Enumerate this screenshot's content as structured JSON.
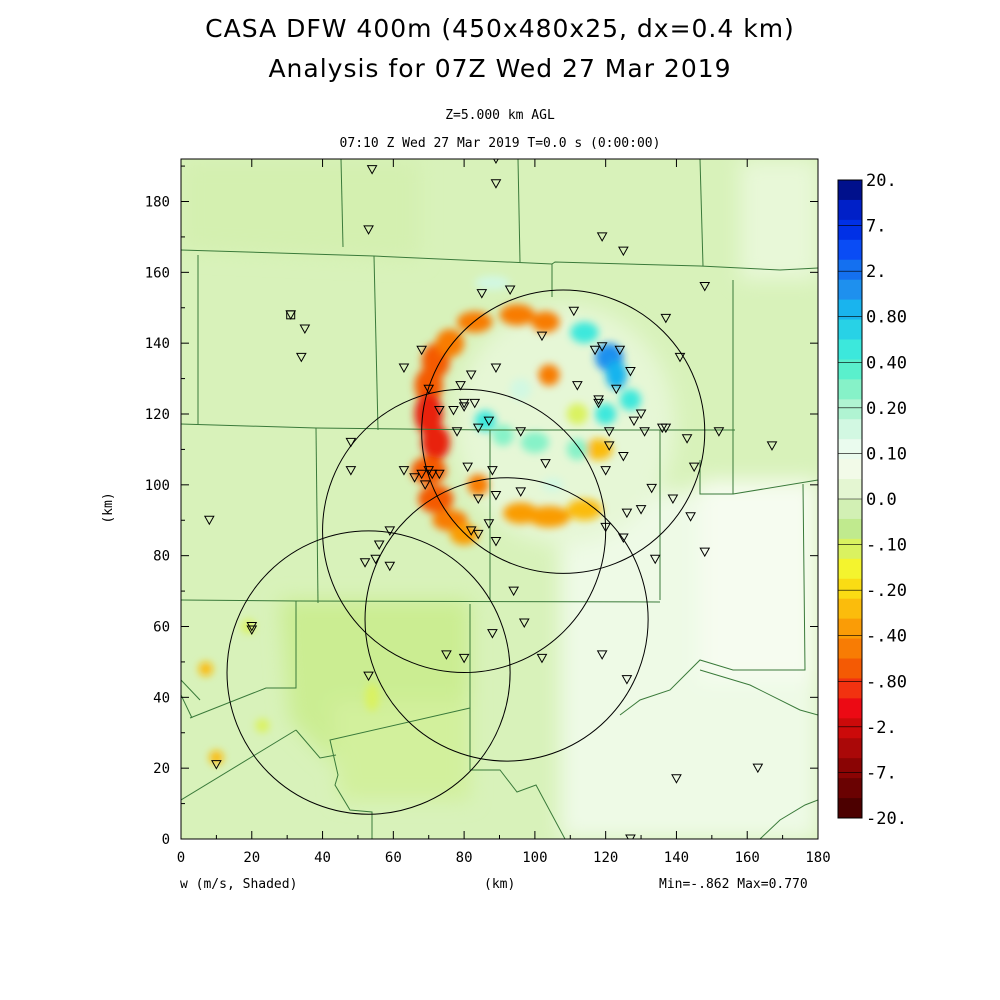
{
  "title": {
    "line1": "CASA DFW 400m (450x480x25, dx=0.4 km)",
    "line2": "Analysis for 07Z Wed 27 Mar 2019"
  },
  "level_label": "Z=5.000 km AGL",
  "time_label": "07:10 Z Wed 27 Mar 2019    T=0.0 s (0:00:00)",
  "xaxis": {
    "label": "(km)",
    "ticks": [
      0,
      20,
      40,
      60,
      80,
      100,
      120,
      140,
      160,
      180
    ],
    "range": [
      0,
      180
    ]
  },
  "yaxis": {
    "label": "(km)",
    "ticks": [
      0,
      20,
      40,
      60,
      80,
      100,
      120,
      140,
      160,
      180
    ],
    "range": [
      0,
      192
    ]
  },
  "field_label": "w (m/s, Shaded)",
  "minmax_label": "Min=-.862 Max=0.770",
  "colorbar": {
    "labels": [
      "20.",
      "7.",
      "2.",
      "0.80",
      "0.40",
      "0.20",
      "0.10",
      "0.0",
      "-.10",
      "-.20",
      "-.40",
      "-.80",
      "-2.",
      "-7.",
      "-20."
    ],
    "colors": [
      "#00108c",
      "#0020c8",
      "#0030e6",
      "#0a4cf5",
      "#1470f0",
      "#1e90ee",
      "#19b4ee",
      "#28d2e6",
      "#3ce8dc",
      "#5af0cc",
      "#86f2c8",
      "#b0f4d2",
      "#d2f8e2",
      "#eafbee",
      "#f2fae8",
      "#e4f6d2",
      "#d2f0b4",
      "#c0ea8e",
      "#daf260",
      "#f4f42e",
      "#fadc14",
      "#fbbc0c",
      "#fa9c06",
      "#f87c04",
      "#f45a04",
      "#f23210",
      "#ec0a14",
      "#cc0a0a",
      "#aa0808",
      "#8a0404",
      "#6a0202",
      "#4c0000"
    ]
  },
  "radar_circles": [
    {
      "cx": 108,
      "cy": 115,
      "r": 40
    },
    {
      "cx": 80,
      "cy": 87,
      "r": 40
    },
    {
      "cx": 92,
      "cy": 62,
      "r": 40
    },
    {
      "cx": 53,
      "cy": 47,
      "r": 40
    }
  ],
  "stations": [
    [
      54,
      189
    ],
    [
      89,
      192
    ],
    [
      89,
      185
    ],
    [
      53,
      172
    ],
    [
      119,
      170
    ],
    [
      125,
      166
    ],
    [
      148,
      156
    ],
    [
      85,
      154
    ],
    [
      93,
      155
    ],
    [
      31,
      148
    ],
    [
      35,
      144
    ],
    [
      111,
      149
    ],
    [
      137,
      147
    ],
    [
      102,
      142
    ],
    [
      34,
      136
    ],
    [
      68,
      138
    ],
    [
      63,
      133
    ],
    [
      119,
      139
    ],
    [
      117,
      138
    ],
    [
      124,
      138
    ],
    [
      89,
      133
    ],
    [
      82,
      131
    ],
    [
      79,
      128
    ],
    [
      70,
      127
    ],
    [
      127,
      132
    ],
    [
      112,
      128
    ],
    [
      80,
      123
    ],
    [
      83,
      123
    ],
    [
      123,
      127
    ],
    [
      118,
      123
    ],
    [
      118,
      124
    ],
    [
      130,
      120
    ],
    [
      128,
      118
    ],
    [
      137,
      116
    ],
    [
      141,
      136
    ],
    [
      77,
      121
    ],
    [
      87,
      118
    ],
    [
      96,
      115
    ],
    [
      73,
      121
    ],
    [
      80,
      122
    ],
    [
      78,
      115
    ],
    [
      84,
      116
    ],
    [
      136,
      116
    ],
    [
      121,
      115
    ],
    [
      131,
      115
    ],
    [
      143,
      113
    ],
    [
      152,
      115
    ],
    [
      121,
      111
    ],
    [
      48,
      112
    ],
    [
      88,
      104
    ],
    [
      103,
      106
    ],
    [
      81,
      105
    ],
    [
      68,
      103
    ],
    [
      70,
      104
    ],
    [
      63,
      104
    ],
    [
      48,
      104
    ],
    [
      66,
      102
    ],
    [
      71,
      103
    ],
    [
      73,
      103
    ],
    [
      69,
      100
    ],
    [
      167,
      111
    ],
    [
      145,
      105
    ],
    [
      125,
      108
    ],
    [
      120,
      104
    ],
    [
      133,
      99
    ],
    [
      89,
      97
    ],
    [
      84,
      96
    ],
    [
      96,
      98
    ],
    [
      126,
      92
    ],
    [
      130,
      93
    ],
    [
      139,
      96
    ],
    [
      144,
      91
    ],
    [
      8,
      90
    ],
    [
      87,
      89
    ],
    [
      82,
      87
    ],
    [
      120,
      88
    ],
    [
      125,
      85
    ],
    [
      84,
      86
    ],
    [
      89,
      84
    ],
    [
      59,
      87
    ],
    [
      56,
      83
    ],
    [
      55,
      79
    ],
    [
      59,
      77
    ],
    [
      52,
      78
    ],
    [
      134,
      79
    ],
    [
      148,
      81
    ],
    [
      94,
      70
    ],
    [
      97,
      61
    ],
    [
      20,
      60
    ],
    [
      20,
      59
    ],
    [
      88,
      58
    ],
    [
      75,
      52
    ],
    [
      80,
      51
    ],
    [
      102,
      51
    ],
    [
      119,
      52
    ],
    [
      53,
      46
    ],
    [
      126,
      45
    ],
    [
      163,
      20
    ],
    [
      10,
      21
    ],
    [
      140,
      17
    ],
    [
      127,
      0
    ]
  ],
  "radar_sites": [
    [
      31,
      148
    ]
  ],
  "blobs": [
    {
      "x": 72,
      "y": 135,
      "rx": 4,
      "ry": 5,
      "w": -0.55
    },
    {
      "x": 76,
      "y": 140,
      "rx": 4,
      "ry": 4,
      "w": -0.5
    },
    {
      "x": 70,
      "y": 128,
      "rx": 4,
      "ry": 5,
      "w": -0.7
    },
    {
      "x": 70,
      "y": 120,
      "rx": 4,
      "ry": 6,
      "w": -0.8
    },
    {
      "x": 72,
      "y": 112,
      "rx": 4,
      "ry": 5,
      "w": -0.75
    },
    {
      "x": 70,
      "y": 104,
      "rx": 5,
      "ry": 4,
      "w": -0.6
    },
    {
      "x": 72,
      "y": 96,
      "rx": 5,
      "ry": 4,
      "w": -0.55
    },
    {
      "x": 76,
      "y": 90,
      "rx": 5,
      "ry": 3,
      "w": -0.45
    },
    {
      "x": 80,
      "y": 86,
      "rx": 4,
      "ry": 3,
      "w": -0.35
    },
    {
      "x": 84,
      "y": 100,
      "rx": 3,
      "ry": 3,
      "w": -0.4
    },
    {
      "x": 83,
      "y": 146,
      "rx": 5,
      "ry": 3,
      "w": -0.45
    },
    {
      "x": 95,
      "y": 148,
      "rx": 5,
      "ry": 3,
      "w": -0.45
    },
    {
      "x": 103,
      "y": 146,
      "rx": 4,
      "ry": 3,
      "w": -0.4
    },
    {
      "x": 104,
      "y": 131,
      "rx": 3,
      "ry": 3,
      "w": -0.4
    },
    {
      "x": 96,
      "y": 92,
      "rx": 5,
      "ry": 3,
      "w": -0.3
    },
    {
      "x": 104,
      "y": 91,
      "rx": 6,
      "ry": 3,
      "w": -0.35
    },
    {
      "x": 114,
      "y": 93,
      "rx": 5,
      "ry": 3,
      "w": -0.2
    },
    {
      "x": 118,
      "y": 110,
      "rx": 4,
      "ry": 3,
      "w": -0.2
    },
    {
      "x": 112,
      "y": 120,
      "rx": 3,
      "ry": 3,
      "w": -0.15
    },
    {
      "x": 7,
      "y": 48,
      "rx": 2,
      "ry": 2,
      "w": -0.2
    },
    {
      "x": 10,
      "y": 23,
      "rx": 2,
      "ry": 2,
      "w": -0.25
    },
    {
      "x": 23,
      "y": 32,
      "rx": 2,
      "ry": 2,
      "w": -0.15
    },
    {
      "x": 19,
      "y": 60,
      "rx": 2,
      "ry": 2,
      "w": -0.15
    },
    {
      "x": 54,
      "y": 40,
      "rx": 2,
      "ry": 4,
      "w": -0.15
    },
    {
      "x": 121,
      "y": 136,
      "rx": 4,
      "ry": 4,
      "w": 0.55
    },
    {
      "x": 123,
      "y": 131,
      "rx": 3,
      "ry": 4,
      "w": 0.45
    },
    {
      "x": 114,
      "y": 143,
      "rx": 4,
      "ry": 3,
      "w": 0.3
    },
    {
      "x": 120,
      "y": 120,
      "rx": 3,
      "ry": 3,
      "w": 0.3
    },
    {
      "x": 127,
      "y": 124,
      "rx": 3,
      "ry": 3,
      "w": 0.25
    },
    {
      "x": 86,
      "y": 118,
      "rx": 3,
      "ry": 3,
      "w": 0.3
    },
    {
      "x": 91,
      "y": 114,
      "rx": 3,
      "ry": 3,
      "w": 0.2
    },
    {
      "x": 100,
      "y": 112,
      "rx": 4,
      "ry": 3,
      "w": 0.15
    },
    {
      "x": 112,
      "y": 110,
      "rx": 3,
      "ry": 3,
      "w": 0.15
    },
    {
      "x": 96,
      "y": 127,
      "rx": 3,
      "ry": 3,
      "w": 0.12
    },
    {
      "x": 88,
      "y": 157,
      "rx": 5,
      "ry": 2,
      "w": 0.12
    },
    {
      "x": 105,
      "y": 100,
      "rx": 3,
      "ry": 2,
      "w": 0.12
    }
  ]
}
